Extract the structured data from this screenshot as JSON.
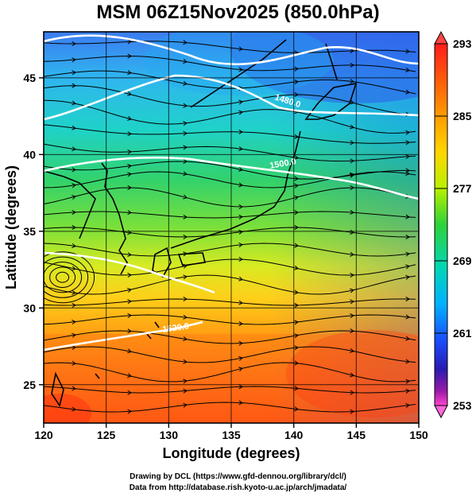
{
  "title": "MSM 06Z15Nov2025 (850.0hPa)",
  "map": {
    "projection": "lat-lon",
    "xlabel": "Longitude (degrees)",
    "ylabel": "Latitude  (degrees)",
    "lon_range": [
      120,
      150
    ],
    "lat_range": [
      22.5,
      48
    ],
    "lon_ticks": [
      "120",
      "125",
      "130",
      "135",
      "140",
      "145",
      "150"
    ],
    "lat_ticks": [
      "25",
      "30",
      "35",
      "40",
      "45"
    ],
    "grid": true,
    "field": "temperature",
    "overlay": [
      "streamlines",
      "geopotential height contours",
      "coastlines"
    ],
    "contour_labels": [
      "1480.0",
      "1500.0",
      "1520.0"
    ]
  },
  "colorbar": {
    "min": 253,
    "max": 293,
    "labels": [
      "293",
      "285",
      "277",
      "269",
      "261",
      "253"
    ],
    "colors": [
      "#ff1d1d",
      "#ff7a00",
      "#ffd000",
      "#c8f000",
      "#3ad23a",
      "#00d6b0",
      "#00b8ff",
      "#1a4dff",
      "#1a1ab4",
      "#8a1aa8",
      "#ff44d0"
    ]
  },
  "credits": {
    "line1": "Drawing by DCL (https://www.gfd-dennou.org/library/dcl/)",
    "line2": "Data from http://database.rish.kyoto-u.ac.jp/arch/jmadata/"
  }
}
